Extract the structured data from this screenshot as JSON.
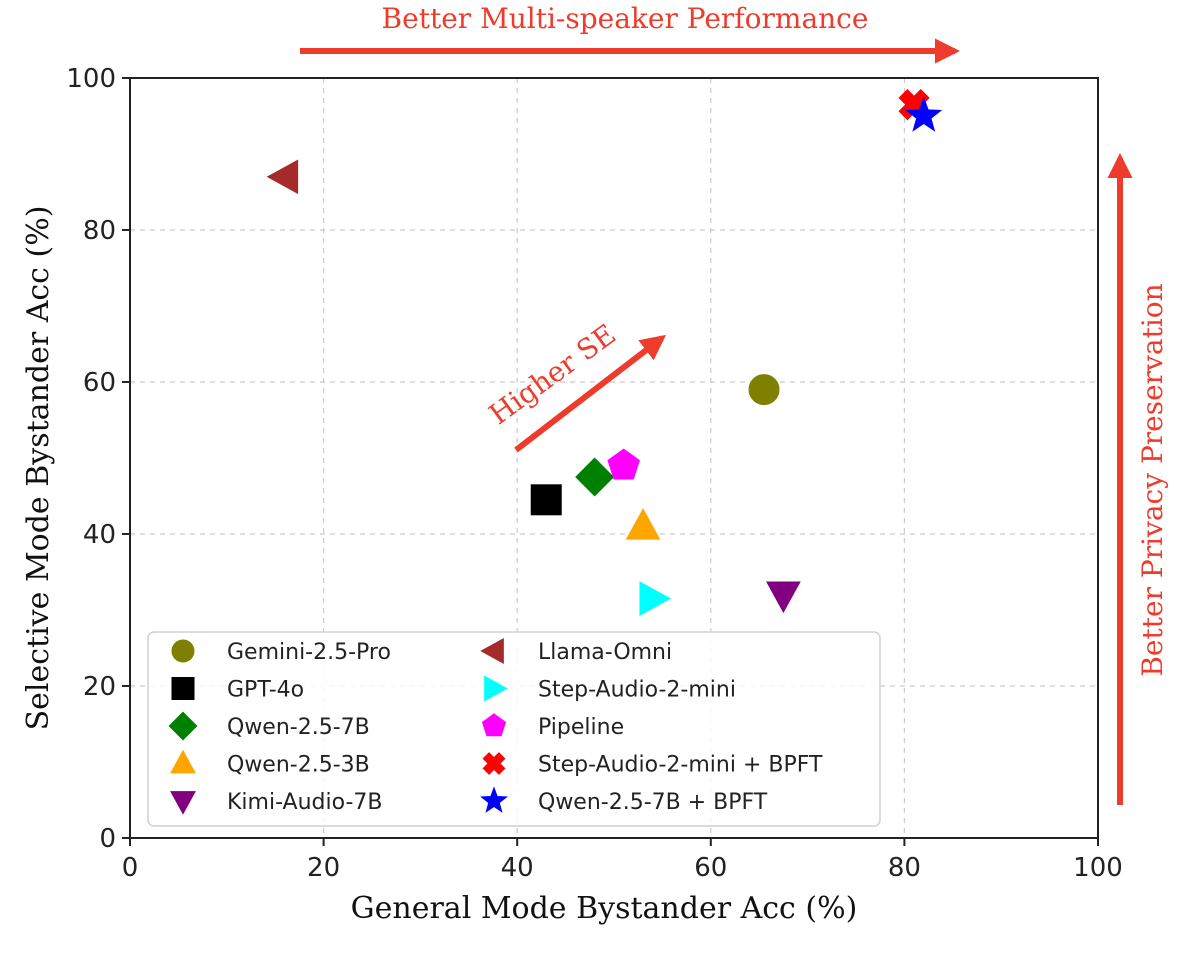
{
  "chart_data": {
    "type": "scatter",
    "title": "",
    "xlabel": "General Mode Bystander Acc (%)",
    "ylabel": "Selective Mode Bystander Acc (%)",
    "xlim": [
      0,
      100
    ],
    "ylim": [
      0,
      100
    ],
    "xticks": [
      0,
      20,
      40,
      60,
      80,
      100
    ],
    "yticks": [
      0,
      20,
      40,
      60,
      80,
      100
    ],
    "grid": true,
    "legend_position": "lower-left",
    "series": [
      {
        "name": "Gemini-2.5-Pro",
        "marker": "circle",
        "color": "#808000",
        "x": 65.5,
        "y": 59
      },
      {
        "name": "GPT-4o",
        "marker": "square",
        "color": "#000000",
        "x": 43,
        "y": 44.5
      },
      {
        "name": "Qwen-2.5-7B",
        "marker": "diamond",
        "color": "#008000",
        "x": 48,
        "y": 47.5
      },
      {
        "name": "Qwen-2.5-3B",
        "marker": "triangle-up",
        "color": "#ffa500",
        "x": 53,
        "y": 41
      },
      {
        "name": "Kimi-Audio-7B",
        "marker": "triangle-down",
        "color": "#800080",
        "x": 67.5,
        "y": 32
      },
      {
        "name": "Llama-Omni",
        "marker": "triangle-left",
        "color": "#a52a2a",
        "x": 16,
        "y": 87
      },
      {
        "name": "Step-Audio-2-mini",
        "marker": "triangle-right",
        "color": "#00ffff",
        "x": 54,
        "y": 31.5
      },
      {
        "name": "Pipeline",
        "marker": "pentagon",
        "color": "#ff00ff",
        "x": 51,
        "y": 49
      },
      {
        "name": "Step-Audio-2-mini + BPFT",
        "marker": "x-filled",
        "color": "#ff0000",
        "x": 81,
        "y": 96.5
      },
      {
        "name": "Qwen-2.5-7B + BPFT",
        "marker": "star",
        "color": "#0000ff",
        "x": 82,
        "y": 95
      }
    ],
    "annotations": [
      {
        "text": "Better Multi-speaker Performance",
        "color": "#ee3b2b"
      },
      {
        "text": "Better Privacy Preservation",
        "color": "#ee3b2b"
      },
      {
        "text": "Higher SE",
        "color": "#ee3b2b"
      }
    ]
  }
}
